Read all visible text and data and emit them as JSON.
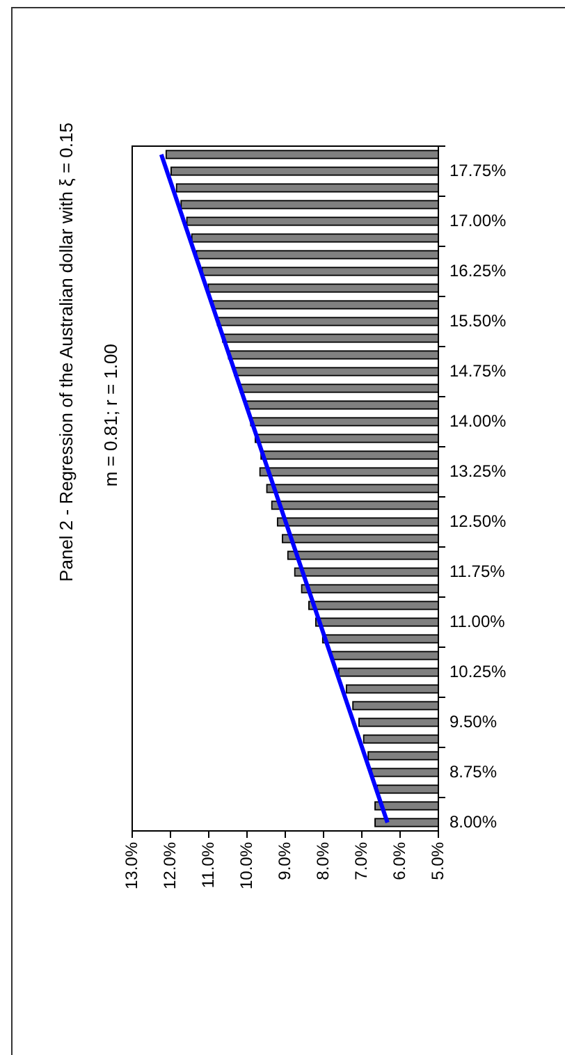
{
  "chart_data": {
    "type": "bar",
    "orientation": "horizontal",
    "title": "Panel 2 - Regression of the Australian dollar with ξ = 0.15",
    "subtitle": "m = 0.81; r = 1.00",
    "x": [
      8,
      8.25,
      8.5,
      8.75,
      9,
      9.25,
      9.5,
      9.75,
      10,
      10.25,
      10.5,
      10.75,
      11,
      11.25,
      11.5,
      11.75,
      12,
      12.25,
      12.5,
      12.75,
      13,
      13.25,
      13.5,
      13.75,
      14,
      14.25,
      14.5,
      14.75,
      15,
      15.25,
      15.5,
      15.75,
      16,
      16.25,
      16.5,
      16.75,
      17,
      17.25,
      17.5,
      17.75,
      18
    ],
    "series": [
      {
        "color": "#808080",
        "values": [
          6.66,
          6.66,
          6.61,
          6.76,
          6.84,
          6.96,
          7.08,
          7.24,
          7.41,
          7.61,
          7.81,
          8.03,
          8.21,
          8.39,
          8.58,
          8.76,
          8.94,
          9.08,
          9.21,
          9.36,
          9.49,
          9.67,
          9.64,
          9.79,
          9.91,
          10.03,
          10.18,
          10.33,
          10.49,
          10.64,
          10.78,
          10.9,
          11.02,
          11.18,
          11.33,
          11.45,
          11.58,
          11.73,
          11.85,
          11.99,
          12.12
        ]
      },
      {
        "type": "line",
        "color": "#0000ff",
        "x": [
          8,
          18
        ],
        "values": [
          6.33,
          12.24
        ]
      }
    ],
    "ylim": [
      7.875,
      18.125
    ],
    "yticks": [
      {
        "value": 8,
        "label": "8.00%"
      },
      {
        "value": 8.75,
        "label": "8.75%"
      },
      {
        "value": 9.5,
        "label": "9.50%"
      },
      {
        "value": 10.25,
        "label": "10.25%"
      },
      {
        "value": 11,
        "label": "11.00%"
      },
      {
        "value": 11.75,
        "label": "11.75%"
      },
      {
        "value": 12.5,
        "label": "12.50%"
      },
      {
        "value": 13.25,
        "label": "13.25%"
      },
      {
        "value": 14,
        "label": "14.00%"
      },
      {
        "value": 14.75,
        "label": "14.75%"
      },
      {
        "value": 15.5,
        "label": "15.50%"
      },
      {
        "value": 16.25,
        "label": "16.25%"
      },
      {
        "value": 17,
        "label": "17.00%"
      },
      {
        "value": 17.75,
        "label": "17.75%"
      }
    ],
    "xlim": [
      13,
      5
    ],
    "xticks": [
      {
        "value": 5,
        "label": "5.0%"
      },
      {
        "value": 6,
        "label": "6.0%"
      },
      {
        "value": 7,
        "label": "7.0%"
      },
      {
        "value": 8,
        "label": "8.0%"
      },
      {
        "value": 9,
        "label": "9.0%"
      },
      {
        "value": 10,
        "label": "10.0%"
      },
      {
        "value": 11,
        "label": "11.0%"
      },
      {
        "value": 12,
        "label": "12.0%"
      },
      {
        "value": 13,
        "label": "13.0%"
      }
    ],
    "grid": false,
    "legend": false,
    "marker": "none",
    "line_style": "solid"
  }
}
